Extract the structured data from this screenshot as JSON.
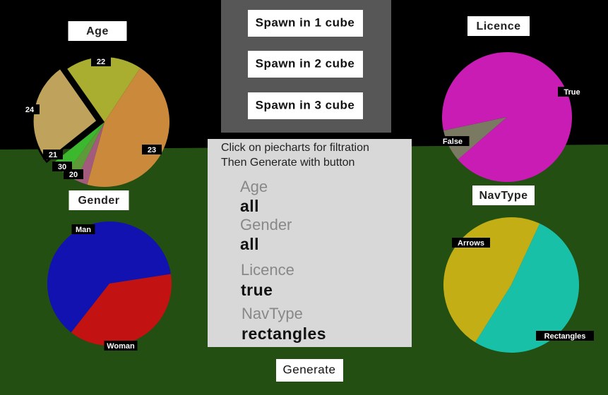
{
  "chart_data": [
    {
      "type": "pie",
      "title": "Age",
      "categories": [
        "22",
        "23",
        "20",
        "30",
        "21",
        "24"
      ],
      "values": [
        19,
        45,
        3,
        3,
        4,
        26
      ],
      "colors": [
        "#a9ad30",
        "#cb8a3b",
        "#a25b7c",
        "#5f9a3a",
        "#3cb82e",
        "#bfa35d"
      ],
      "selected": "24"
    },
    {
      "type": "pie",
      "title": "Gender",
      "categories": [
        "Man",
        "Woman"
      ],
      "values": [
        62,
        38
      ],
      "colors": [
        "#1212b0",
        "#c31212"
      ]
    },
    {
      "type": "pie",
      "title": "Licence",
      "categories": [
        "True",
        "False"
      ],
      "values": [
        92,
        8
      ],
      "colors": [
        "#c81cb4",
        "#7a7a62"
      ]
    },
    {
      "type": "pie",
      "title": "NavType",
      "categories": [
        "Arrows",
        "Rectangles"
      ],
      "values": [
        48,
        52
      ],
      "colors": [
        "#c4ae16",
        "#18c0a8"
      ]
    }
  ],
  "spawn_panel": {
    "buttons": [
      "Spawn in 1 cube",
      "Spawn in 2 cube",
      "Spawn in 3 cube"
    ]
  },
  "filter_panel": {
    "instructions": [
      "Click on piecharts for filtration",
      "Then Generate with button"
    ],
    "filters": [
      {
        "label": "Age",
        "value": "all"
      },
      {
        "label": "Gender",
        "value": "all"
      },
      {
        "label": "Licence",
        "value": "true"
      },
      {
        "label": "NavType",
        "value": "rectangles"
      }
    ]
  },
  "generate_button": "Generate"
}
